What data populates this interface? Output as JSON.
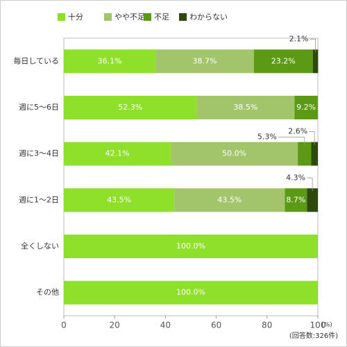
{
  "chart_data": {
    "type": "stacked-bar-horizontal",
    "categories": [
      "毎日している",
      "週に5～6日",
      "週に3～4日",
      "週に1～2日",
      "全くしない",
      "その他"
    ],
    "series": [
      {
        "name": "十分",
        "color": "#8ee02a",
        "values": [
          36.1,
          52.3,
          42.1,
          43.5,
          100.0,
          100.0
        ],
        "value_labels": [
          "36.1%",
          "52.3%",
          "42.1%",
          "43.5%",
          "100.0%",
          "100.0%"
        ]
      },
      {
        "name": "やや不足",
        "color": "#a2c46a",
        "values": [
          38.7,
          38.5,
          50.0,
          43.5,
          0,
          0
        ],
        "value_labels": [
          "38.7%",
          "38.5%",
          "50.0%",
          "43.5%",
          null,
          null
        ]
      },
      {
        "name": "不足",
        "color": "#5c9a16",
        "values": [
          23.2,
          9.2,
          5.3,
          8.7,
          0,
          0
        ],
        "value_labels": [
          "23.2%",
          "9.2%",
          "5.3%",
          "8.7%",
          null,
          null
        ]
      },
      {
        "name": "わからない",
        "color": "#2d4a0c",
        "values": [
          2.1,
          0,
          2.6,
          4.3,
          0,
          0
        ],
        "value_labels": [
          "2.1%",
          null,
          "2.6%",
          "4.3%",
          null,
          null
        ]
      }
    ],
    "xlim": [
      0,
      100
    ],
    "xticks": [
      0,
      20,
      40,
      60,
      80,
      100
    ],
    "x_unit": "(%)",
    "note": "(回答数:326件)",
    "grid": false
  }
}
